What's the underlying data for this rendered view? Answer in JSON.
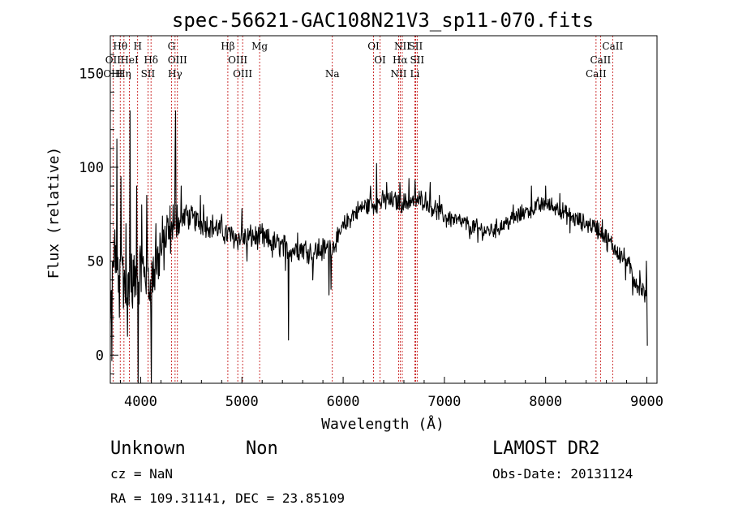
{
  "chart_data": {
    "type": "line",
    "title": "spec-56621-GAC108N21V3_sp11-070.fits",
    "xlabel": "Wavelength (Å)",
    "ylabel": "Flux (relative)",
    "xlim": [
      3700,
      9100
    ],
    "ylim": [
      -15,
      170
    ],
    "xticks": [
      4000,
      5000,
      6000,
      7000,
      8000,
      9000
    ],
    "yticks": [
      0,
      50,
      100,
      150
    ],
    "grid": false,
    "line_color": "#000000",
    "marker_color": "#c00000",
    "spectrum_anchors": [
      [
        3700,
        15
      ],
      [
        3720,
        40
      ],
      [
        3750,
        55
      ],
      [
        3780,
        45
      ],
      [
        3820,
        50
      ],
      [
        3860,
        35
      ],
      [
        3900,
        42
      ],
      [
        3950,
        38
      ],
      [
        4000,
        45
      ],
      [
        4050,
        42
      ],
      [
        4100,
        38
      ],
      [
        4150,
        47
      ],
      [
        4200,
        55
      ],
      [
        4250,
        62
      ],
      [
        4300,
        66
      ],
      [
        4350,
        68
      ],
      [
        4400,
        72
      ],
      [
        4450,
        74
      ],
      [
        4500,
        73
      ],
      [
        4600,
        70
      ],
      [
        4700,
        69
      ],
      [
        4800,
        66
      ],
      [
        4900,
        63
      ],
      [
        5000,
        62
      ],
      [
        5100,
        63
      ],
      [
        5200,
        62
      ],
      [
        5300,
        60
      ],
      [
        5400,
        58
      ],
      [
        5500,
        56
      ],
      [
        5600,
        57
      ],
      [
        5700,
        55
      ],
      [
        5800,
        56
      ],
      [
        5900,
        58
      ],
      [
        6000,
        68
      ],
      [
        6100,
        75
      ],
      [
        6200,
        79
      ],
      [
        6300,
        80
      ],
      [
        6400,
        82
      ],
      [
        6500,
        82
      ],
      [
        6600,
        81
      ],
      [
        6700,
        82
      ],
      [
        6800,
        83
      ],
      [
        6900,
        78
      ],
      [
        7000,
        74
      ],
      [
        7100,
        72
      ],
      [
        7200,
        70
      ],
      [
        7300,
        68
      ],
      [
        7400,
        66
      ],
      [
        7500,
        67
      ],
      [
        7600,
        70
      ],
      [
        7700,
        73
      ],
      [
        7800,
        76
      ],
      [
        7900,
        79
      ],
      [
        8000,
        80
      ],
      [
        8100,
        79
      ],
      [
        8200,
        75
      ],
      [
        8300,
        72
      ],
      [
        8400,
        70
      ],
      [
        8500,
        68
      ],
      [
        8600,
        62
      ],
      [
        8700,
        56
      ],
      [
        8800,
        50
      ],
      [
        8900,
        38
      ],
      [
        8950,
        35
      ],
      [
        9000,
        30
      ]
    ],
    "spectrum_features": [
      [
        3715,
        -3
      ],
      [
        3740,
        60
      ],
      [
        3765,
        115
      ],
      [
        3790,
        20
      ],
      [
        3805,
        95
      ],
      [
        3830,
        25
      ],
      [
        3855,
        70
      ],
      [
        3870,
        10
      ],
      [
        3895,
        130
      ],
      [
        3920,
        25
      ],
      [
        3960,
        90
      ],
      [
        3975,
        -20
      ],
      [
        4010,
        80
      ],
      [
        4060,
        85
      ],
      [
        4080,
        30
      ],
      [
        4105,
        -15
      ],
      [
        4150,
        70
      ],
      [
        4190,
        65
      ],
      [
        4320,
        80
      ],
      [
        4338,
        110
      ],
      [
        4347,
        130
      ],
      [
        4360,
        80
      ],
      [
        4400,
        90
      ],
      [
        4445,
        78
      ],
      [
        4590,
        85
      ],
      [
        4620,
        80
      ],
      [
        4800,
        75
      ],
      [
        4880,
        68
      ],
      [
        5000,
        78
      ],
      [
        5050,
        50
      ],
      [
        5200,
        70
      ],
      [
        5300,
        52
      ],
      [
        5430,
        45
      ],
      [
        5460,
        8
      ],
      [
        5550,
        65
      ],
      [
        5700,
        40
      ],
      [
        5760,
        62
      ],
      [
        5860,
        32
      ],
      [
        5880,
        35
      ],
      [
        5950,
        60
      ],
      [
        6270,
        90
      ],
      [
        6330,
        102
      ],
      [
        6430,
        92
      ],
      [
        6560,
        92
      ],
      [
        6650,
        94
      ],
      [
        6710,
        93
      ],
      [
        6860,
        92
      ],
      [
        6950,
        85
      ],
      [
        7020,
        68
      ],
      [
        7250,
        62
      ],
      [
        7330,
        60
      ],
      [
        7680,
        80
      ],
      [
        7780,
        78
      ],
      [
        7860,
        90
      ],
      [
        7920,
        82
      ],
      [
        8000,
        90
      ],
      [
        8080,
        77
      ],
      [
        8140,
        86
      ],
      [
        8240,
        65
      ],
      [
        8360,
        66
      ],
      [
        8560,
        72
      ],
      [
        8610,
        55
      ],
      [
        8680,
        58
      ],
      [
        8790,
        40
      ],
      [
        8860,
        32
      ],
      [
        8930,
        45
      ],
      [
        8995,
        50
      ],
      [
        9005,
        5
      ]
    ],
    "lines": [
      {
        "name": "Hθ",
        "wavelength": 3798,
        "row": 1
      },
      {
        "name": "H",
        "wavelength": 3970,
        "row": 1
      },
      {
        "name": "G",
        "wavelength": 4304,
        "row": 1
      },
      {
        "name": "Hβ",
        "wavelength": 4861,
        "row": 1
      },
      {
        "name": "Mg",
        "wavelength": 5175,
        "row": 1
      },
      {
        "name": "OI",
        "wavelength": 6300,
        "row": 1
      },
      {
        "name": "NII",
        "wavelength": 6584,
        "row": 1
      },
      {
        "name": "SII",
        "wavelength": 6716,
        "row": 1
      },
      {
        "name": "CaII",
        "wavelength": 8662,
        "row": 1
      },
      {
        "name": "OII",
        "wavelength": 3727,
        "row": 2
      },
      {
        "name": "HeI",
        "wavelength": 3889,
        "row": 2
      },
      {
        "name": "Hδ",
        "wavelength": 4102,
        "row": 2
      },
      {
        "name": "OIII",
        "wavelength": 4363,
        "row": 2
      },
      {
        "name": "OIII",
        "wavelength": 4959,
        "row": 2
      },
      {
        "name": "OI",
        "wavelength": 6364,
        "row": 2
      },
      {
        "name": "Hα",
        "wavelength": 6563,
        "row": 2
      },
      {
        "name": "SII",
        "wavelength": 6731,
        "row": 2
      },
      {
        "name": "CaII",
        "wavelength": 8542,
        "row": 2
      },
      {
        "name": "OIII",
        "wavelength": 3727,
        "row": 3
      },
      {
        "name": "Hη",
        "wavelength": 3835,
        "row": 3
      },
      {
        "name": "SII",
        "wavelength": 4072,
        "row": 3
      },
      {
        "name": "Hγ",
        "wavelength": 4340,
        "row": 3
      },
      {
        "name": "OIII",
        "wavelength": 5007,
        "row": 3
      },
      {
        "name": "Na",
        "wavelength": 5893,
        "row": 3
      },
      {
        "name": "NII",
        "wavelength": 6548,
        "row": 3
      },
      {
        "name": "Li",
        "wavelength": 6708,
        "row": 3
      },
      {
        "name": "CaII",
        "wavelength": 8498,
        "row": 3
      }
    ]
  },
  "info": {
    "object_class": "Unknown",
    "subclass": "Non",
    "survey": "LAMOST DR2",
    "cz": "cz = NaN",
    "obs_date": "Obs-Date: 20131124",
    "coords": "RA = 109.31141, DEC =  23.85109"
  }
}
